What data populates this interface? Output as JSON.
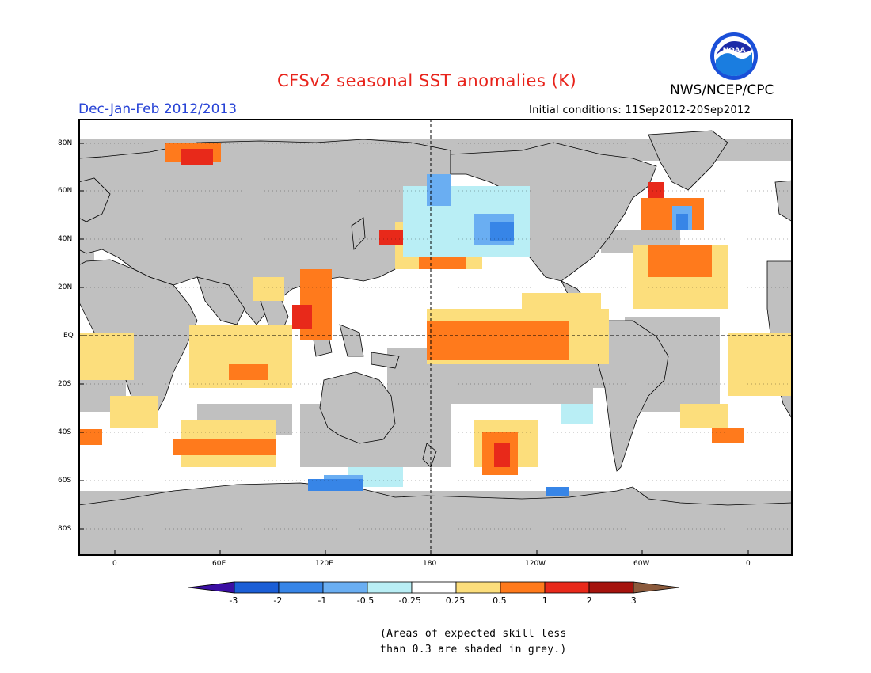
{
  "header": {
    "title": "CFSv2 seasonal SST anomalies (K)",
    "agency": "NWS/NCEP/CPC",
    "logo_text": "NOAA",
    "season": "Dec-Jan-Feb 2012/2013",
    "initial_conditions": "Initial conditions: 11Sep2012-20Sep2012"
  },
  "map": {
    "lat_labels": [
      "80N",
      "60N",
      "40N",
      "20N",
      "EQ",
      "20S",
      "40S",
      "60S",
      "80S"
    ],
    "lon_labels": [
      "0",
      "60E",
      "120E",
      "180",
      "120W",
      "60W",
      "0"
    ],
    "land_color": "#c0c0c0",
    "ocean_color": "#ffffff"
  },
  "colorbar": {
    "labels": [
      "-3",
      "-2",
      "-1",
      "-0.5",
      "-0.25",
      "0.25",
      "0.5",
      "1",
      "2",
      "3"
    ],
    "colors": [
      "#3b0fa3",
      "#1b5ed6",
      "#3785e7",
      "#6aaef2",
      "#b9eef5",
      "#ffffff",
      "#fcde7c",
      "#ff7a1c",
      "#e8291a",
      "#a5130d",
      "#8b5a3c"
    ]
  },
  "notes": {
    "line1": "(Areas of expected skill less",
    "line2": "than 0.3 are shaded in grey.)"
  }
}
